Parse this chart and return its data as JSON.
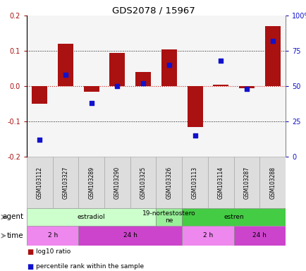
{
  "title": "GDS2078 / 15967",
  "samples": [
    "GSM103112",
    "GSM103327",
    "GSM103289",
    "GSM103290",
    "GSM103325",
    "GSM103326",
    "GSM103113",
    "GSM103114",
    "GSM103287",
    "GSM103288"
  ],
  "log10_ratio": [
    -0.05,
    0.12,
    -0.015,
    0.095,
    0.04,
    0.105,
    -0.115,
    0.005,
    -0.005,
    0.17
  ],
  "percentile_rank": [
    12,
    58,
    38,
    50,
    52,
    65,
    15,
    68,
    48,
    82
  ],
  "ylim_left": [
    -0.2,
    0.2
  ],
  "ylim_right": [
    0,
    100
  ],
  "yticks_left": [
    -0.2,
    -0.1,
    0.0,
    0.1,
    0.2
  ],
  "yticks_right": [
    0,
    25,
    50,
    75,
    100
  ],
  "ytick_labels_right": [
    "0",
    "25",
    "50",
    "75",
    "100%"
  ],
  "bar_color": "#aa1111",
  "dot_color": "#1111cc",
  "zero_line_color": "#cc2222",
  "dotted_line_color": "#111111",
  "agent_groups": [
    {
      "label": "estradiol",
      "start": 0,
      "end": 4,
      "color": "#ccffcc"
    },
    {
      "label": "19-nortestostero\nne",
      "start": 5,
      "end": 5,
      "color": "#99ee99"
    },
    {
      "label": "estren",
      "start": 6,
      "end": 9,
      "color": "#44cc44"
    }
  ],
  "time_groups": [
    {
      "label": "2 h",
      "start": 0,
      "end": 1,
      "color": "#ee88ee"
    },
    {
      "label": "24 h",
      "start": 2,
      "end": 5,
      "color": "#cc44cc"
    },
    {
      "label": "2 h",
      "start": 6,
      "end": 7,
      "color": "#ee88ee"
    },
    {
      "label": "24 h",
      "start": 8,
      "end": 9,
      "color": "#cc44cc"
    }
  ],
  "agent_label": "agent",
  "time_label": "time",
  "legend_bar_label": "log10 ratio",
  "legend_dot_label": "percentile rank within the sample",
  "chart_bg": "#f5f5f5",
  "background_color": "#ffffff"
}
